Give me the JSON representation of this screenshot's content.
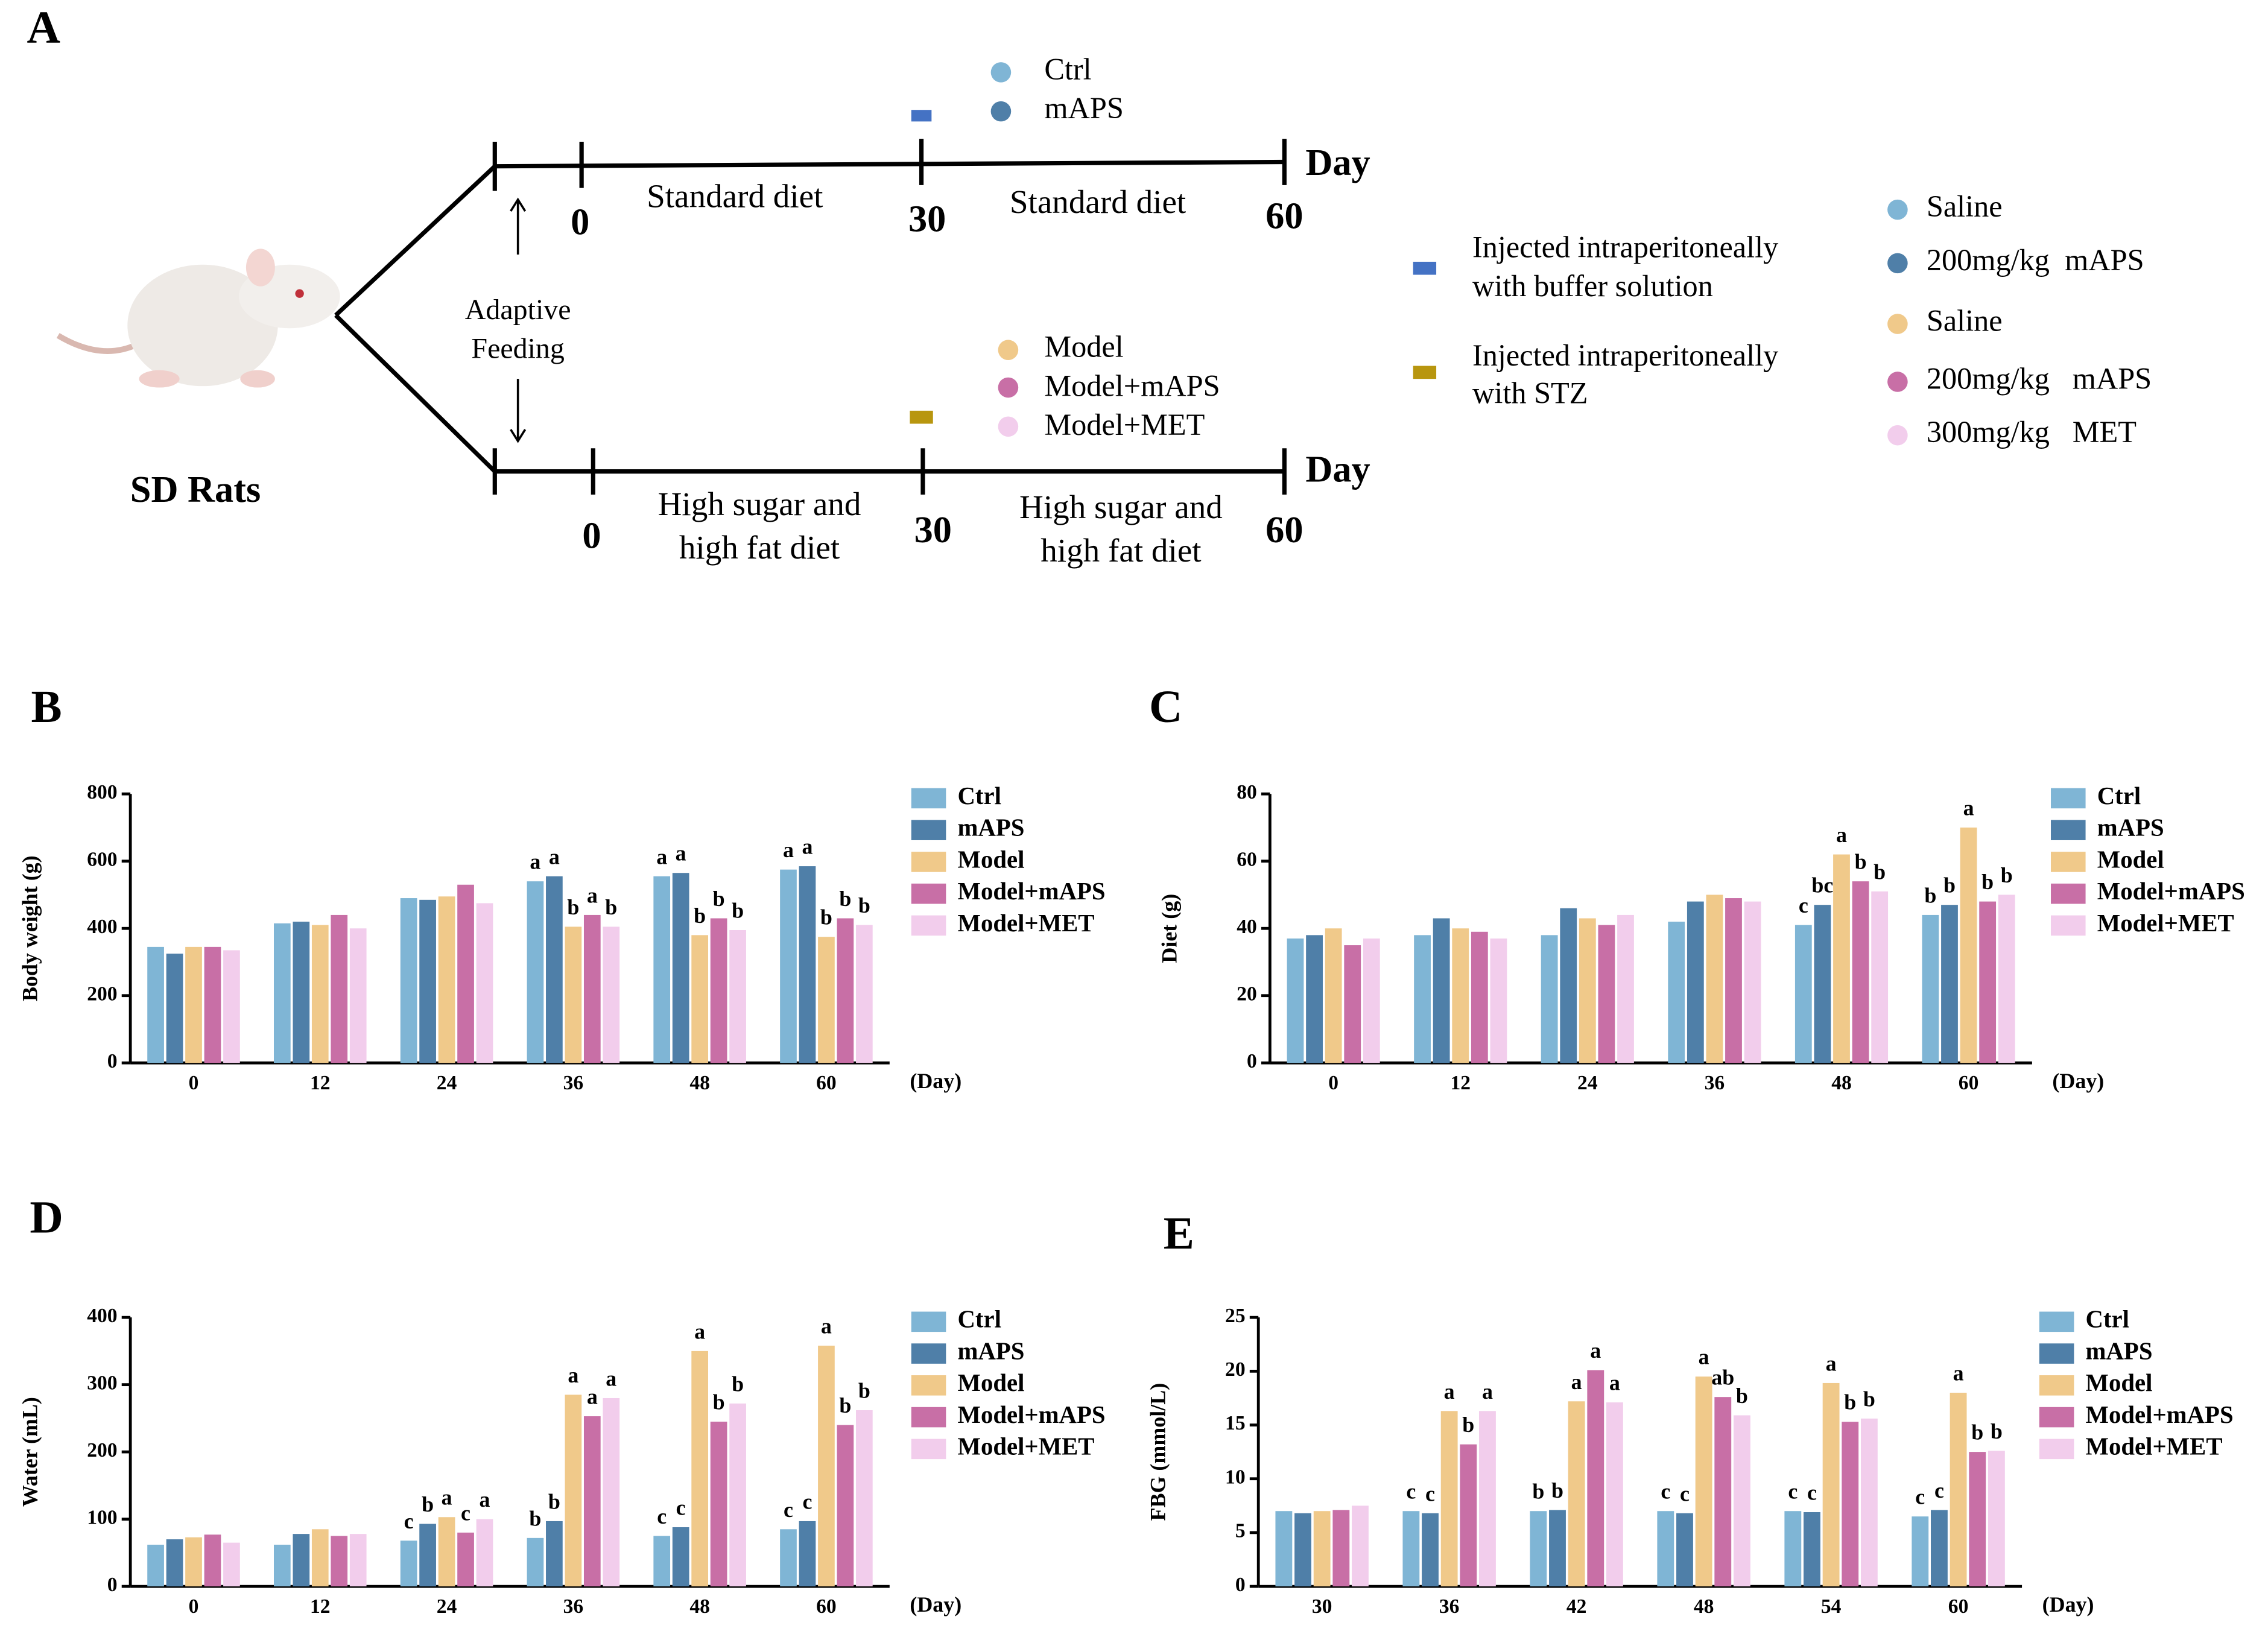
{
  "schematic": {
    "panel": "A",
    "subject": "SD Rats",
    "adaptation": [
      "Adaptive",
      "Feeding"
    ],
    "time_unit": "Day",
    "normal_branch": {
      "groups": [
        "Ctrl",
        "mAPS"
      ],
      "days": [
        "0",
        "30",
        "60"
      ],
      "diets": [
        "Standard diet",
        "Standard diet"
      ]
    },
    "model_branch": {
      "groups": [
        "Model",
        "Model+mAPS",
        "Model+MET"
      ],
      "days": [
        "0",
        "30",
        "60"
      ],
      "diets": [
        [
          "High sugar and",
          "high fat diet"
        ],
        [
          "High sugar and",
          "high fat diet"
        ]
      ]
    },
    "injection_legend": [
      [
        "Injected intraperitoneally",
        "with buffer solution"
      ],
      [
        "Injected intraperitoneally",
        "with STZ"
      ]
    ],
    "treatment_legend": [
      "Saline",
      "200mg/kg  mAPS",
      "Saline",
      "200mg/kg   mAPS",
      "300mg/kg   MET"
    ]
  },
  "chart_data": [
    {
      "type": "bar",
      "panel": "B",
      "ylabel": "Body weight (g)",
      "xlabel": "(Day)",
      "categories": [
        "0",
        "12",
        "24",
        "36",
        "48",
        "60"
      ],
      "ylim": [
        0,
        800
      ],
      "yticks": [
        0,
        200,
        400,
        600,
        800
      ],
      "series": [
        {
          "name": "Ctrl",
          "color": "#7fb5d5",
          "values": [
            345,
            415,
            490,
            540,
            555,
            575
          ],
          "annotations": [
            null,
            null,
            null,
            "a",
            "a",
            "a"
          ]
        },
        {
          "name": "mAPS",
          "color": "#4f7fa8",
          "values": [
            325,
            420,
            485,
            555,
            565,
            585
          ],
          "annotations": [
            null,
            null,
            null,
            "a",
            "a",
            "a"
          ]
        },
        {
          "name": "Model",
          "color": "#f0c98a",
          "values": [
            345,
            410,
            495,
            405,
            380,
            375
          ],
          "annotations": [
            null,
            null,
            null,
            "b",
            "b",
            "b"
          ]
        },
        {
          "name": "Model+mAPS",
          "color": "#c86fa6",
          "values": [
            345,
            440,
            530,
            440,
            430,
            430
          ],
          "annotations": [
            null,
            null,
            null,
            "a",
            "b",
            "b"
          ]
        },
        {
          "name": "Model+MET",
          "color": "#f2cdec",
          "values": [
            335,
            400,
            475,
            405,
            395,
            410
          ],
          "annotations": [
            null,
            null,
            null,
            "b",
            "b",
            "b"
          ]
        }
      ]
    },
    {
      "type": "bar",
      "panel": "C",
      "ylabel": "Diet (g)",
      "xlabel": "(Day)",
      "categories": [
        "0",
        "12",
        "24",
        "36",
        "48",
        "60"
      ],
      "ylim": [
        0,
        80
      ],
      "yticks": [
        0,
        20,
        40,
        60,
        80
      ],
      "series": [
        {
          "name": "Ctrl",
          "color": "#7fb5d5",
          "values": [
            37,
            38,
            38,
            42,
            41,
            44
          ],
          "annotations": [
            null,
            null,
            null,
            null,
            "c",
            "b"
          ]
        },
        {
          "name": "mAPS",
          "color": "#4f7fa8",
          "values": [
            38,
            43,
            46,
            48,
            47,
            47
          ],
          "annotations": [
            null,
            null,
            null,
            null,
            "bc",
            "b"
          ]
        },
        {
          "name": "Model",
          "color": "#f0c98a",
          "values": [
            40,
            40,
            43,
            50,
            62,
            70
          ],
          "annotations": [
            null,
            null,
            null,
            null,
            "a",
            "a"
          ]
        },
        {
          "name": "Model+mAPS",
          "color": "#c86fa6",
          "values": [
            35,
            39,
            41,
            49,
            54,
            48
          ],
          "annotations": [
            null,
            null,
            null,
            null,
            "b",
            "b"
          ]
        },
        {
          "name": "Model+MET",
          "color": "#f2cdec",
          "values": [
            37,
            37,
            44,
            48,
            51,
            50
          ],
          "annotations": [
            null,
            null,
            null,
            null,
            "b",
            "b"
          ]
        }
      ]
    },
    {
      "type": "bar",
      "panel": "D",
      "ylabel": "Water (mL)",
      "xlabel": "(Day)",
      "categories": [
        "0",
        "12",
        "24",
        "36",
        "48",
        "60"
      ],
      "ylim": [
        0,
        400
      ],
      "yticks": [
        0,
        100,
        200,
        300,
        400
      ],
      "series": [
        {
          "name": "Ctrl",
          "color": "#7fb5d5",
          "values": [
            62,
            62,
            68,
            72,
            75,
            85
          ],
          "annotations": [
            null,
            null,
            "c",
            "b",
            "c",
            "c"
          ]
        },
        {
          "name": "mAPS",
          "color": "#4f7fa8",
          "values": [
            70,
            78,
            93,
            97,
            88,
            97
          ],
          "annotations": [
            null,
            null,
            "b",
            "b",
            "c",
            "c"
          ]
        },
        {
          "name": "Model",
          "color": "#f0c98a",
          "values": [
            73,
            85,
            103,
            285,
            350,
            358
          ],
          "annotations": [
            null,
            null,
            "a",
            "a",
            "a",
            "a"
          ]
        },
        {
          "name": "Model+mAPS",
          "color": "#c86fa6",
          "values": [
            77,
            75,
            80,
            253,
            245,
            240
          ],
          "annotations": [
            null,
            null,
            "c",
            "a",
            "b",
            "b"
          ]
        },
        {
          "name": "Model+MET",
          "color": "#f2cdec",
          "values": [
            65,
            78,
            100,
            280,
            272,
            262
          ],
          "annotations": [
            null,
            null,
            "a",
            "a",
            "b",
            "b"
          ]
        }
      ]
    },
    {
      "type": "bar",
      "panel": "E",
      "ylabel": "FBG (mmol/L)",
      "xlabel": "(Day)",
      "categories": [
        "30",
        "36",
        "42",
        "48",
        "54",
        "60"
      ],
      "ylim": [
        0,
        25
      ],
      "yticks": [
        0,
        5,
        10,
        15,
        20,
        25
      ],
      "series": [
        {
          "name": "Ctrl",
          "color": "#7fb5d5",
          "values": [
            7.0,
            7.0,
            7.0,
            7.0,
            7.0,
            6.5
          ],
          "annotations": [
            null,
            "c",
            "b",
            "c",
            "c",
            "c"
          ]
        },
        {
          "name": "mAPS",
          "color": "#4f7fa8",
          "values": [
            6.8,
            6.8,
            7.1,
            6.8,
            6.9,
            7.1
          ],
          "annotations": [
            null,
            "c",
            "b",
            "c",
            "c",
            "c"
          ]
        },
        {
          "name": "Model",
          "color": "#f0c98a",
          "values": [
            7.0,
            16.3,
            17.2,
            19.5,
            18.9,
            18.0
          ],
          "annotations": [
            null,
            "a",
            "a",
            "a",
            "a",
            "a"
          ]
        },
        {
          "name": "Model+mAPS",
          "color": "#c86fa6",
          "values": [
            7.1,
            13.2,
            20.1,
            17.6,
            15.3,
            12.5
          ],
          "annotations": [
            null,
            "b",
            "a",
            "ab",
            "b",
            "b"
          ]
        },
        {
          "name": "Model+MET",
          "color": "#f2cdec",
          "values": [
            7.5,
            16.3,
            17.1,
            15.9,
            15.6,
            12.6
          ],
          "annotations": [
            null,
            "a",
            "a",
            "b",
            "b",
            "b"
          ]
        }
      ]
    }
  ]
}
